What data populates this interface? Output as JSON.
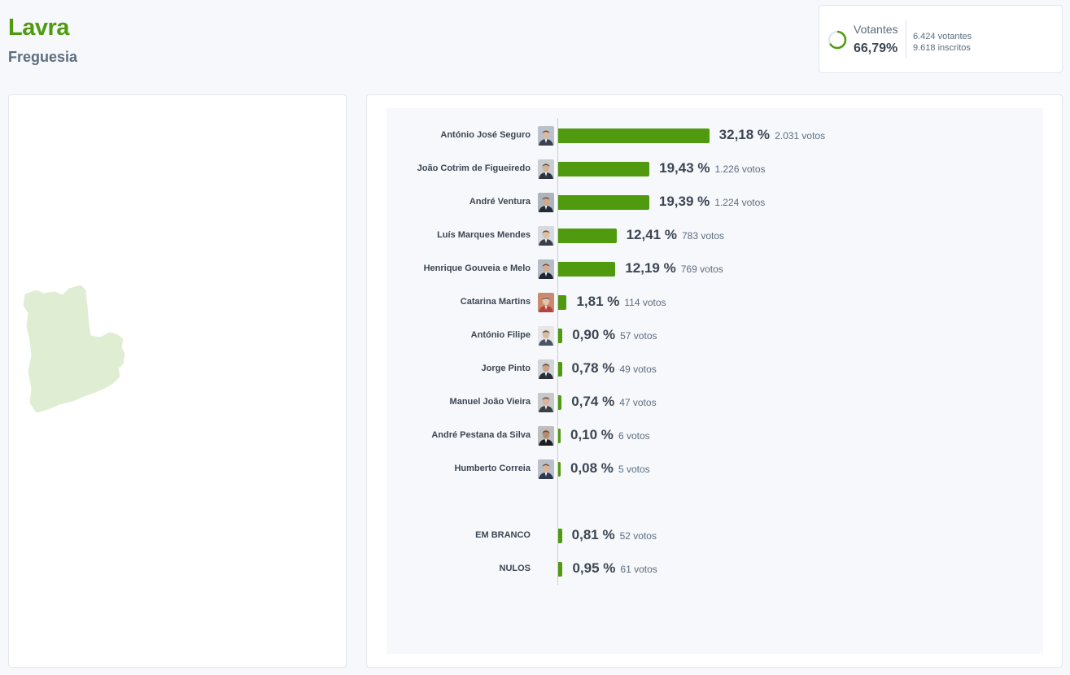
{
  "header": {
    "title": "Lavra",
    "subtitle": "Freguesia"
  },
  "turnout": {
    "label": "Votantes",
    "percent": "66,79%",
    "percent_value": 66.79,
    "voters": "6.424 votantes",
    "registered": "9.618 inscritos"
  },
  "colors": {
    "accent": "#4f9a0e",
    "map_fill": "#dfeed3"
  },
  "results": [
    {
      "name": "António José Seguro",
      "pct": "32,18 %",
      "value": 32.18,
      "votes": "2.031 votos",
      "avatar": "portrait-seguro",
      "suit": "#3a4250",
      "skin": "#d8b8a0",
      "bg": "#b9c2cc"
    },
    {
      "name": "João Cotrim de Figueiredo",
      "pct": "19,43 %",
      "value": 19.43,
      "votes": "1.226 votos",
      "avatar": "portrait-cotrim",
      "suit": "#2f3440",
      "skin": "#d3b29a",
      "bg": "#c9ccd0"
    },
    {
      "name": "André Ventura",
      "pct": "19,39 %",
      "value": 19.39,
      "votes": "1.224 votos",
      "avatar": "portrait-ventura",
      "suit": "#252b36",
      "skin": "#cfa98e",
      "bg": "#aeb4bc"
    },
    {
      "name": "Luís Marques Mendes",
      "pct": "12,41 %",
      "value": 12.41,
      "votes": "783 votos",
      "avatar": "portrait-mendes",
      "suit": "#3a3f4a",
      "skin": "#ddbfa8",
      "bg": "#d6d9dd"
    },
    {
      "name": "Henrique Gouveia e Melo",
      "pct": "12,19 %",
      "value": 12.19,
      "votes": "769 votos",
      "avatar": "portrait-gouveia",
      "suit": "#1f2633",
      "skin": "#d2ad94",
      "bg": "#b5bcc5"
    },
    {
      "name": "Catarina Martins",
      "pct": "1,81 %",
      "value": 1.81,
      "votes": "114 votos",
      "avatar": "portrait-martins",
      "suit": "#b4443c",
      "skin": "#e4c2ab",
      "bg": "#c98a6e"
    },
    {
      "name": "António Filipe",
      "pct": "0,90 %",
      "value": 0.9,
      "votes": "57 votos",
      "avatar": "portrait-filipe",
      "suit": "#4a5566",
      "skin": "#d9bca6",
      "bg": "#e6e6e6"
    },
    {
      "name": "Jorge Pinto",
      "pct": "0,78 %",
      "value": 0.78,
      "votes": "49 votos",
      "avatar": "portrait-pinto",
      "suit": "#2a2f38",
      "skin": "#c9a288",
      "bg": "#d0d3d7"
    },
    {
      "name": "Manuel João Vieira",
      "pct": "0,74 %",
      "value": 0.74,
      "votes": "47 votos",
      "avatar": "portrait-vieira",
      "suit": "#3b3f46",
      "skin": "#d6b49d",
      "bg": "#c8c8c8"
    },
    {
      "name": "André Pestana da Silva",
      "pct": "0,10 %",
      "value": 0.1,
      "votes": "6 votos",
      "avatar": "portrait-pestana",
      "suit": "#1d1f24",
      "skin": "#b88a6c",
      "bg": "#bdbdbd"
    },
    {
      "name": "Humberto Correia",
      "pct": "0,08 %",
      "value": 0.08,
      "votes": "5 votos",
      "avatar": "portrait-correia",
      "suit": "#2e3a52",
      "skin": "#d8b59c",
      "bg": "#b9c0c9"
    }
  ],
  "others": [
    {
      "name": "EM BRANCO",
      "pct": "0,81 %",
      "value": 0.81,
      "votes": "52 votos"
    },
    {
      "name": "NULOS",
      "pct": "0,95 %",
      "value": 0.95,
      "votes": "61 votos"
    }
  ]
}
